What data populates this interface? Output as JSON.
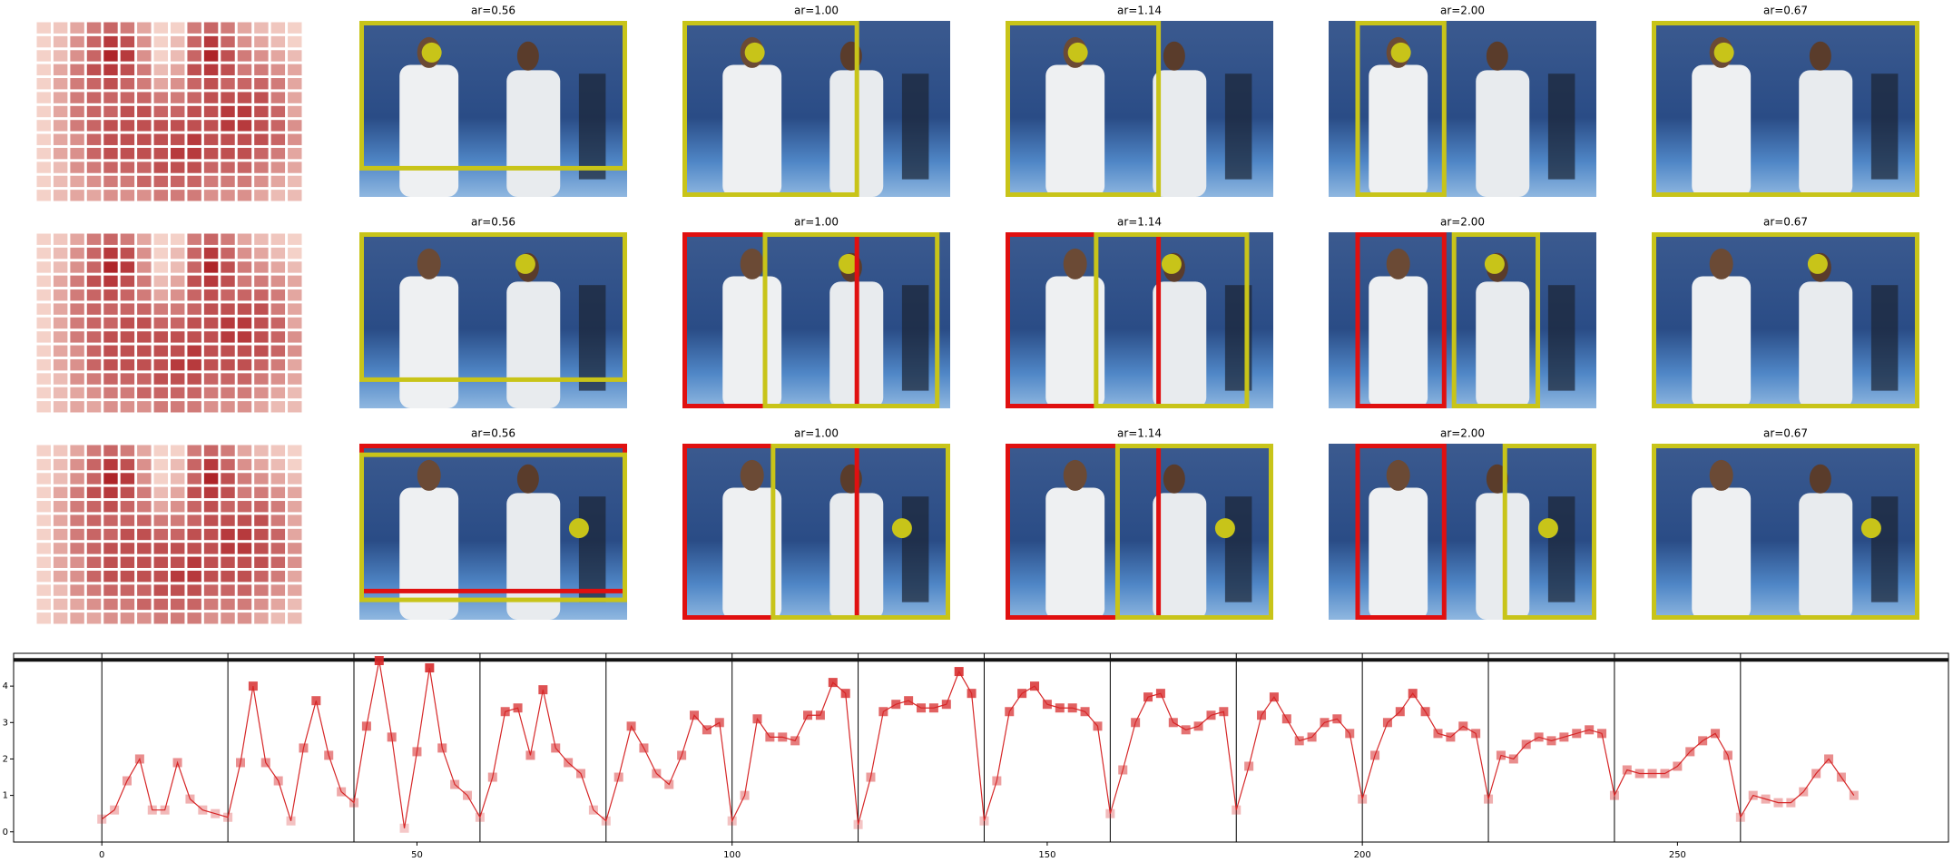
{
  "heatmap": {
    "values": [
      [
        0.1,
        0.15,
        0.3,
        0.5,
        0.6,
        0.5,
        0.3,
        0.1,
        0.1,
        0.5,
        0.6,
        0.5,
        0.3,
        0.2,
        0.15,
        0.1
      ],
      [
        0.1,
        0.2,
        0.4,
        0.6,
        0.8,
        0.7,
        0.4,
        0.1,
        0.2,
        0.6,
        0.8,
        0.6,
        0.4,
        0.3,
        0.2,
        0.1
      ],
      [
        0.1,
        0.2,
        0.4,
        0.6,
        0.9,
        0.8,
        0.4,
        0.1,
        0.2,
        0.6,
        0.9,
        0.7,
        0.5,
        0.4,
        0.3,
        0.2
      ],
      [
        0.1,
        0.3,
        0.5,
        0.7,
        0.8,
        0.7,
        0.5,
        0.2,
        0.3,
        0.7,
        0.8,
        0.7,
        0.5,
        0.5,
        0.4,
        0.3
      ],
      [
        0.1,
        0.3,
        0.5,
        0.6,
        0.7,
        0.6,
        0.5,
        0.3,
        0.4,
        0.6,
        0.7,
        0.6,
        0.6,
        0.6,
        0.5,
        0.3
      ],
      [
        0.1,
        0.3,
        0.5,
        0.6,
        0.6,
        0.6,
        0.6,
        0.5,
        0.5,
        0.6,
        0.7,
        0.7,
        0.7,
        0.7,
        0.5,
        0.3
      ],
      [
        0.1,
        0.3,
        0.5,
        0.6,
        0.6,
        0.7,
        0.7,
        0.6,
        0.6,
        0.7,
        0.7,
        0.8,
        0.8,
        0.7,
        0.6,
        0.3
      ],
      [
        0.1,
        0.3,
        0.5,
        0.6,
        0.7,
        0.7,
        0.7,
        0.7,
        0.7,
        0.7,
        0.7,
        0.8,
        0.8,
        0.7,
        0.6,
        0.4
      ],
      [
        0.1,
        0.3,
        0.4,
        0.6,
        0.7,
        0.7,
        0.7,
        0.7,
        0.7,
        0.8,
        0.7,
        0.7,
        0.7,
        0.7,
        0.6,
        0.4
      ],
      [
        0.1,
        0.3,
        0.4,
        0.6,
        0.7,
        0.7,
        0.7,
        0.7,
        0.8,
        0.8,
        0.7,
        0.7,
        0.7,
        0.6,
        0.5,
        0.3
      ],
      [
        0.1,
        0.2,
        0.4,
        0.5,
        0.6,
        0.6,
        0.6,
        0.7,
        0.7,
        0.7,
        0.6,
        0.6,
        0.6,
        0.5,
        0.4,
        0.3
      ],
      [
        0.1,
        0.2,
        0.3,
        0.4,
        0.5,
        0.5,
        0.6,
        0.6,
        0.6,
        0.6,
        0.5,
        0.5,
        0.5,
        0.4,
        0.3,
        0.2
      ],
      [
        0.1,
        0.2,
        0.3,
        0.3,
        0.4,
        0.4,
        0.4,
        0.5,
        0.5,
        0.5,
        0.4,
        0.4,
        0.4,
        0.3,
        0.2,
        0.2
      ]
    ]
  },
  "image_titles": [
    [
      "ar=0.56",
      "ar=1.00",
      "ar=1.14",
      "ar=2.00",
      "ar=0.67"
    ],
    [
      "ar=0.56",
      "ar=1.00",
      "ar=1.14",
      "ar=2.00",
      "ar=0.67"
    ],
    [
      "ar=0.56",
      "ar=1.00",
      "ar=1.14",
      "ar=2.00",
      "ar=0.67"
    ]
  ],
  "chart_data": {
    "type": "line",
    "x": [
      0,
      2,
      4,
      6,
      8,
      10,
      12,
      14,
      16,
      18,
      20,
      22,
      24,
      26,
      28,
      30,
      32,
      34,
      36,
      38,
      40,
      42,
      44,
      46,
      48,
      50,
      52,
      54,
      56,
      58,
      60,
      62,
      64,
      66,
      68,
      70,
      72,
      74,
      76,
      78,
      80,
      82,
      84,
      86,
      88,
      90,
      92,
      94,
      96,
      98,
      100,
      102,
      104,
      106,
      108,
      110,
      112,
      114,
      116,
      118,
      120,
      122,
      124,
      126,
      128,
      130,
      132,
      134,
      136,
      138,
      140,
      142,
      144,
      146,
      148,
      150,
      152,
      154,
      156,
      158,
      160,
      162,
      164,
      166,
      168,
      170,
      172,
      174,
      176,
      178,
      180,
      182,
      184,
      186,
      188,
      190,
      192,
      194,
      196,
      198,
      200,
      202,
      204,
      206,
      208,
      210,
      212,
      214,
      216,
      218,
      220,
      222,
      224,
      226,
      228,
      230,
      232,
      234,
      236,
      238,
      240,
      242,
      244,
      246,
      248,
      250,
      252,
      254,
      256,
      258,
      260,
      262,
      264,
      266,
      268,
      270,
      272,
      274,
      276,
      278
    ],
    "series": [
      {
        "color": "#d62728",
        "values": [
          0.35,
          0.6,
          1.4,
          2.0,
          0.6,
          0.6,
          1.9,
          0.9,
          0.6,
          0.5,
          0.4,
          1.9,
          4.0,
          1.9,
          1.4,
          0.3,
          2.3,
          3.6,
          2.1,
          1.1,
          0.8,
          2.9,
          4.7,
          2.6,
          0.1,
          2.2,
          4.5,
          2.3,
          1.3,
          1.0,
          0.4,
          1.5,
          3.3,
          3.4,
          2.1,
          3.9,
          2.3,
          1.9,
          1.6,
          0.6,
          0.3,
          1.5,
          2.9,
          2.3,
          1.6,
          1.3,
          2.1,
          3.2,
          2.8,
          3.0,
          0.3,
          1.0,
          3.1,
          2.6,
          2.6,
          2.5,
          3.2,
          3.2,
          4.1,
          3.8,
          0.2,
          1.5,
          3.3,
          3.5,
          3.6,
          3.4,
          3.4,
          3.5,
          4.4,
          3.8,
          0.3,
          1.4,
          3.3,
          3.8,
          4.0,
          3.5,
          3.4,
          3.4,
          3.3,
          2.9,
          0.5,
          1.7,
          3.0,
          3.7,
          3.8,
          3.0,
          2.8,
          2.9,
          3.2,
          3.3,
          0.6,
          1.8,
          3.2,
          3.7,
          3.1,
          2.5,
          2.6,
          3.0,
          3.1,
          2.7,
          0.9,
          2.1,
          3.0,
          3.3,
          3.8,
          3.3,
          2.7,
          2.6,
          2.9,
          2.7,
          0.9,
          2.1,
          2.0,
          2.4,
          2.6,
          2.5,
          2.6,
          2.7,
          2.8,
          2.7,
          1.0,
          1.7,
          1.6,
          1.6,
          1.6,
          1.8,
          2.2,
          2.5,
          2.7,
          2.1,
          0.4,
          1.0,
          0.9,
          0.8,
          0.8,
          1.1,
          1.6,
          2.0,
          1.5,
          1.0
        ]
      }
    ],
    "xlim": [
      -14,
      293
    ],
    "ylim": [
      -0.28,
      4.9
    ],
    "xticks": [
      0,
      50,
      100,
      150,
      200,
      250
    ],
    "yticks": [
      0,
      1,
      2,
      3,
      4
    ],
    "vlines": [
      0,
      20,
      40,
      60,
      80,
      100,
      120,
      140,
      160,
      180,
      200,
      220,
      240,
      260
    ],
    "hline": 4.72
  }
}
